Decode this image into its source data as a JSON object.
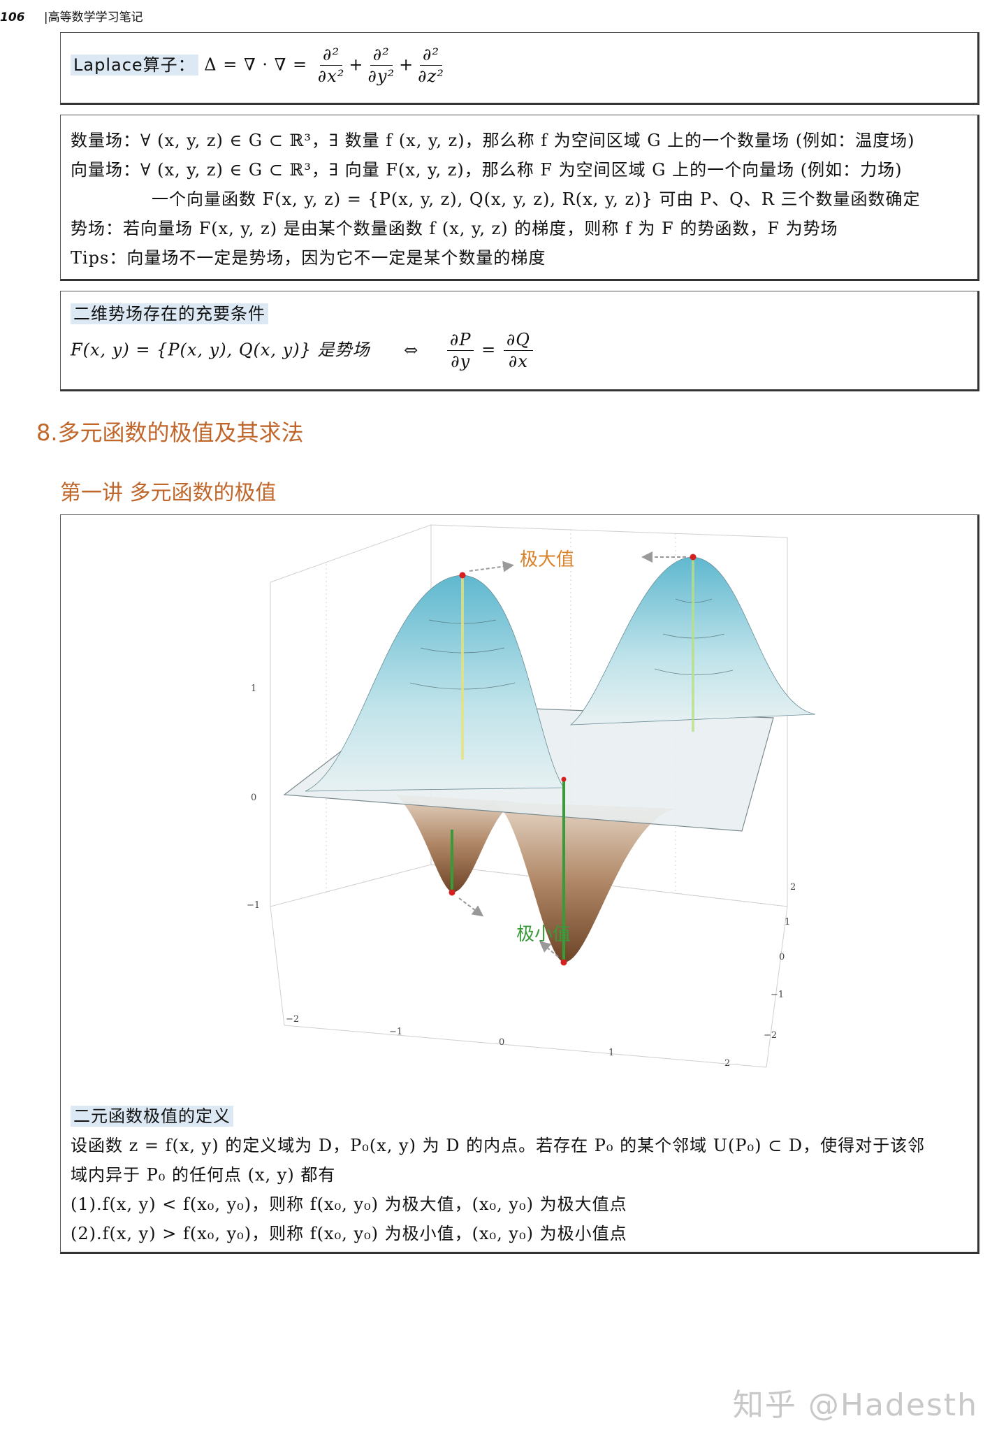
{
  "header": {
    "page_number": "106",
    "running_title": "|高等数学学习笔记"
  },
  "laplace": {
    "label": "Laplace算子：",
    "formula_lhs": "Δ = ∇ · ∇ =",
    "frac1_num": "∂²",
    "frac1_den": "∂x²",
    "frac2_num": "∂²",
    "frac2_den": "∂y²",
    "frac3_num": "∂²",
    "frac3_den": "∂z²",
    "plus": "+"
  },
  "fields": {
    "line1": "数量场：∀ (x, y, z) ∈ G ⊂ ℝ³，∃ 数量 f (x, y, z)，那么称 f 为空间区域 G 上的一个数量场 (例如：温度场)",
    "line2": "向量场：∀ (x, y, z) ∈ G ⊂ ℝ³，∃ 向量 F(x, y, z)，那么称 F 为空间区域 G 上的一个向量场 (例如：力场)",
    "line3": "一个向量函数 F(x, y, z) = {P(x, y, z), Q(x, y, z), R(x, y, z)} 可由 P、Q、R 三个数量函数确定",
    "line4": "势场：若向量场 F(x, y, z) 是由某个数量函数 f (x, y, z) 的梯度，则称 f 为 F 的势函数，F 为势场",
    "line5": "Tips：向量场不一定是势场，因为它不一定是某个数量的梯度"
  },
  "potential": {
    "title": "二维势场存在的充要条件",
    "lhs": "F(x, y) = {P(x, y), Q(x, y)} 是势场",
    "iff": "⇔",
    "frac1_num": "∂P",
    "frac1_den": "∂y",
    "eq": "=",
    "frac2_num": "∂Q",
    "frac2_den": "∂x"
  },
  "section_title": "8.多元函数的极值及其求法",
  "lecture_title": "第一讲 多元函数的极值",
  "plot": {
    "max_label": "极大值",
    "min_label": "极小值",
    "z_ticks": [
      "1",
      "0",
      "−1"
    ],
    "x_ticks": [
      "−2",
      "−1",
      "0",
      "1",
      "2"
    ],
    "y_ticks": [
      "2",
      "1",
      "0",
      "−1",
      "−2"
    ],
    "colors": {
      "max_label": "#d9822b",
      "min_label": "#3a9a3a",
      "peak": "#8fd3e3",
      "valley": "#8a5a35",
      "marker": "#d62020"
    }
  },
  "definition": {
    "title": "二元函数极值的定义",
    "line1": "设函数 z = f(x, y) 的定义域为 D，P₀(x, y) 为 D 的内点。若存在 P₀ 的某个邻域 U(P₀) ⊂ D，使得对于该邻",
    "line2": "域内异于 P₀ 的任何点 (x, y) 都有",
    "line3": "(1).f(x, y) < f(x₀, y₀)，则称 f(x₀, y₀) 为极大值，(x₀, y₀) 为极大值点",
    "line4": "(2).f(x, y) > f(x₀, y₀)，则称 f(x₀, y₀) 为极小值，(x₀, y₀) 为极小值点"
  },
  "watermark": "知乎 @Hadesth"
}
